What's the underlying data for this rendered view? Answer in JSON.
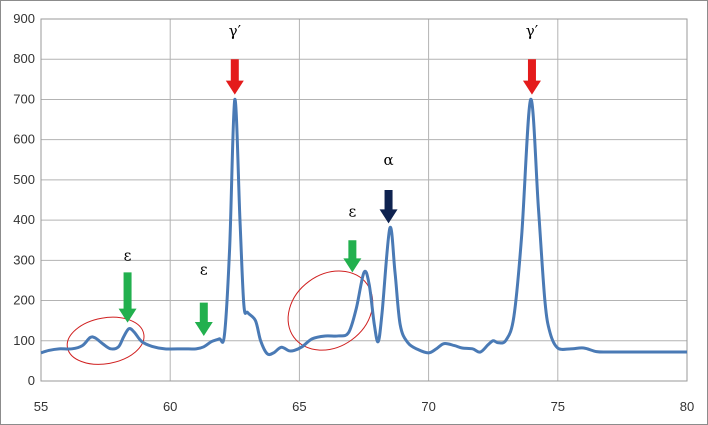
{
  "chart_data": {
    "type": "line",
    "title": "",
    "xlabel": "",
    "ylabel": "",
    "xlim": [
      55,
      80
    ],
    "ylim": [
      0,
      900
    ],
    "xticks": [
      55,
      60,
      65,
      70,
      75,
      80
    ],
    "yticks": [
      0,
      100,
      200,
      300,
      400,
      500,
      600,
      700,
      800,
      900
    ],
    "grid": true,
    "legend": "none",
    "series": [
      {
        "color": "#4a7ab5",
        "points": [
          [
            55.0,
            70
          ],
          [
            55.3,
            76
          ],
          [
            55.7,
            80
          ],
          [
            56.2,
            80
          ],
          [
            56.6,
            88
          ],
          [
            56.9,
            108
          ],
          [
            57.1,
            107
          ],
          [
            57.4,
            92
          ],
          [
            57.7,
            80
          ],
          [
            58.0,
            85
          ],
          [
            58.2,
            110
          ],
          [
            58.4,
            130
          ],
          [
            58.6,
            122
          ],
          [
            58.9,
            98
          ],
          [
            59.3,
            86
          ],
          [
            59.8,
            80
          ],
          [
            60.5,
            80
          ],
          [
            61.0,
            80
          ],
          [
            61.3,
            85
          ],
          [
            61.6,
            98
          ],
          [
            61.9,
            105
          ],
          [
            62.1,
            115
          ],
          [
            62.3,
            330
          ],
          [
            62.5,
            700
          ],
          [
            62.7,
            400
          ],
          [
            62.85,
            190
          ],
          [
            63.0,
            170
          ],
          [
            63.3,
            150
          ],
          [
            63.5,
            100
          ],
          [
            63.75,
            68
          ],
          [
            64.0,
            70
          ],
          [
            64.3,
            84
          ],
          [
            64.6,
            75
          ],
          [
            64.8,
            76
          ],
          [
            65.1,
            85
          ],
          [
            65.5,
            105
          ],
          [
            66.0,
            112
          ],
          [
            66.5,
            112
          ],
          [
            66.9,
            120
          ],
          [
            67.2,
            180
          ],
          [
            67.5,
            270
          ],
          [
            67.7,
            240
          ],
          [
            67.9,
            140
          ],
          [
            68.05,
            98
          ],
          [
            68.2,
            170
          ],
          [
            68.5,
            380
          ],
          [
            68.7,
            270
          ],
          [
            68.9,
            140
          ],
          [
            69.2,
            95
          ],
          [
            69.6,
            78
          ],
          [
            70.0,
            70
          ],
          [
            70.3,
            80
          ],
          [
            70.6,
            93
          ],
          [
            71.0,
            88
          ],
          [
            71.3,
            82
          ],
          [
            71.7,
            80
          ],
          [
            72.0,
            72
          ],
          [
            72.3,
            90
          ],
          [
            72.5,
            100
          ],
          [
            72.7,
            95
          ],
          [
            73.0,
            102
          ],
          [
            73.3,
            160
          ],
          [
            73.6,
            360
          ],
          [
            73.95,
            700
          ],
          [
            74.25,
            430
          ],
          [
            74.5,
            200
          ],
          [
            74.7,
            120
          ],
          [
            75.0,
            82
          ],
          [
            75.5,
            80
          ],
          [
            76.0,
            82
          ],
          [
            76.5,
            73
          ],
          [
            77.0,
            72
          ],
          [
            78.0,
            72
          ],
          [
            79.0,
            72
          ],
          [
            80.0,
            72
          ]
        ]
      }
    ],
    "annotations": [
      {
        "label": "ε",
        "x": 58.35,
        "y_tip": 145,
        "y_tail": 270,
        "arrow_color": "#22b04e",
        "label_y": 312
      },
      {
        "label": "ε",
        "x": 61.3,
        "y_tip": 112,
        "y_tail": 195,
        "arrow_color": "#22b04e",
        "label_y": 277
      },
      {
        "label": "γ′",
        "x": 62.5,
        "y_tip": 712,
        "y_tail": 800,
        "arrow_color": "#e41b1b",
        "label_y": 870
      },
      {
        "label": "ε",
        "x": 67.05,
        "y_tip": 270,
        "y_tail": 350,
        "arrow_color": "#22b04e",
        "label_y": 422
      },
      {
        "label": "α",
        "x": 68.45,
        "y_tip": 392,
        "y_tail": 475,
        "arrow_color": "#0f2350",
        "label_y": 550
      },
      {
        "label": "γ′",
        "x": 74.0,
        "y_tip": 712,
        "y_tail": 800,
        "arrow_color": "#e41b1b",
        "label_y": 870
      }
    ],
    "highlights": [
      {
        "cx": 57.5,
        "cy": 100,
        "rx": 1.5,
        "ry": 57,
        "rotate": -10
      },
      {
        "cx": 66.2,
        "cy": 175,
        "rx": 1.75,
        "ry": 90,
        "rotate": -36
      }
    ],
    "colors": {
      "line": "#4a7ab5",
      "grid": "#b3b3b3",
      "highlight": "#d02020"
    }
  }
}
